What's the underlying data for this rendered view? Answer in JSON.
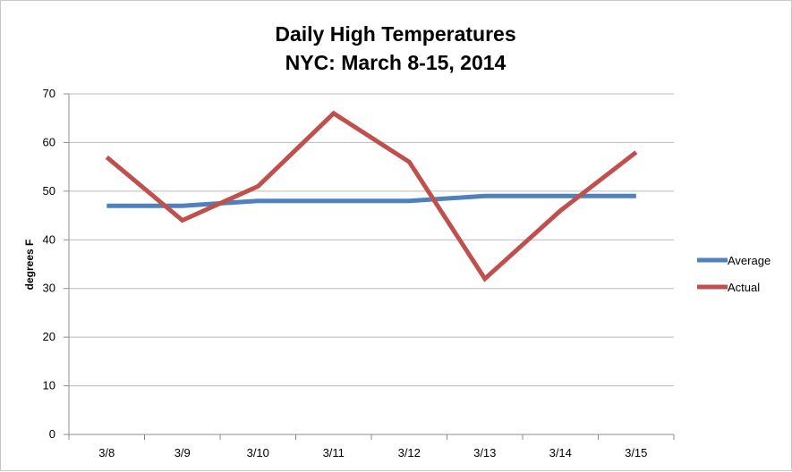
{
  "chart_data": {
    "type": "line",
    "title_lines": [
      "Daily High Temperatures",
      "NYC: March 8-15, 2014"
    ],
    "xlabel": "",
    "ylabel": "degrees F",
    "categories": [
      "3/8",
      "3/9",
      "3/10",
      "3/11",
      "3/12",
      "3/13",
      "3/14",
      "3/15"
    ],
    "ylim": [
      0,
      70
    ],
    "yticks": [
      0,
      10,
      20,
      30,
      40,
      50,
      60,
      70
    ],
    "grid": true,
    "legend_position": "right",
    "series": [
      {
        "name": "Average",
        "color": "#4f81bd",
        "values": [
          47,
          47,
          48,
          48,
          48,
          49,
          49,
          49
        ]
      },
      {
        "name": "Actual",
        "color": "#c0504d",
        "values": [
          57,
          44,
          51,
          66,
          56,
          32,
          46,
          58
        ]
      }
    ]
  }
}
